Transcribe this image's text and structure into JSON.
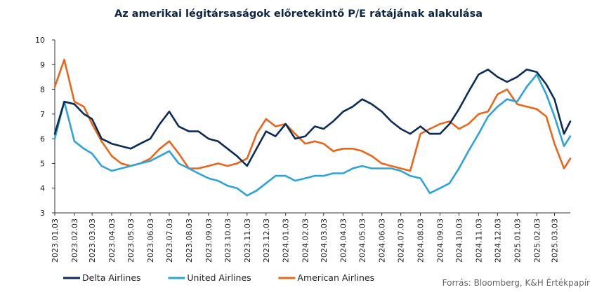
{
  "chart_data": {
    "type": "line",
    "title": "Az amerikai légitársaságok előretekintő P/E rátájának alakulása",
    "xlabel": "",
    "ylabel": "",
    "ylim": [
      3,
      10
    ],
    "yticks": [
      3,
      4,
      5,
      6,
      7,
      8,
      9,
      10
    ],
    "grid": false,
    "legend_position": "bottom-left",
    "source": "Forrás: Bloomberg, K&H Értékpapír",
    "x_tick_labels": [
      "2023.01.03",
      "2023.02.03",
      "2023.03.03",
      "2023.04.03",
      "2023.05.03",
      "2023.06.03",
      "2023.07.03",
      "2023.08.03",
      "2023.09.03",
      "2023.10.03",
      "2023.11.03",
      "2023.12.03",
      "2024.01.03",
      "2024.02.03",
      "2024.03.03",
      "2024.04.03",
      "2024.05.03",
      "2024.06.03",
      "2024.07.03",
      "2024.08.03",
      "2024.09.03",
      "2024.10.03",
      "2024.11.03",
      "2024.12.03",
      "2025.01.03",
      "2025.02.03",
      "2025.03.03"
    ],
    "x": [
      "2023.01.03",
      "2023.01.18",
      "2023.02.03",
      "2023.02.18",
      "2023.03.03",
      "2023.03.18",
      "2023.04.03",
      "2023.04.18",
      "2023.05.03",
      "2023.05.18",
      "2023.06.03",
      "2023.06.18",
      "2023.07.03",
      "2023.07.18",
      "2023.08.03",
      "2023.08.18",
      "2023.09.03",
      "2023.09.18",
      "2023.10.03",
      "2023.10.18",
      "2023.11.03",
      "2023.11.18",
      "2023.12.03",
      "2023.12.18",
      "2024.01.03",
      "2024.01.18",
      "2024.02.03",
      "2024.02.18",
      "2024.03.03",
      "2024.03.18",
      "2024.04.03",
      "2024.04.18",
      "2024.05.03",
      "2024.05.18",
      "2024.06.03",
      "2024.06.18",
      "2024.07.03",
      "2024.07.18",
      "2024.08.03",
      "2024.08.18",
      "2024.09.03",
      "2024.09.18",
      "2024.10.03",
      "2024.10.18",
      "2024.11.03",
      "2024.11.18",
      "2024.12.03",
      "2024.12.18",
      "2025.01.03",
      "2025.01.18",
      "2025.02.03",
      "2025.02.18",
      "2025.03.03",
      "2025.03.18",
      "2025.03.28"
    ],
    "series": [
      {
        "name": "Delta Airlines",
        "color": "#0b2c56",
        "values": [
          6.2,
          7.5,
          7.4,
          7.0,
          6.8,
          6.0,
          5.8,
          5.7,
          5.6,
          5.8,
          6.0,
          6.6,
          7.1,
          6.5,
          6.3,
          6.3,
          6.0,
          5.9,
          5.6,
          5.3,
          4.9,
          5.6,
          6.3,
          6.1,
          6.6,
          6.0,
          6.1,
          6.5,
          6.4,
          6.7,
          7.1,
          7.3,
          7.6,
          7.4,
          7.1,
          6.7,
          6.4,
          6.2,
          6.5,
          6.2,
          6.2,
          6.6,
          7.2,
          7.9,
          8.6,
          8.8,
          8.5,
          8.3,
          8.5,
          8.8,
          8.7,
          8.2,
          7.6,
          6.2,
          6.7
        ]
      },
      {
        "name": "United Airlines",
        "color": "#2ea3d8",
        "values": [
          6.0,
          7.5,
          5.9,
          5.6,
          5.4,
          4.9,
          4.7,
          4.8,
          4.9,
          5.0,
          5.1,
          5.3,
          5.5,
          5.0,
          4.8,
          4.6,
          4.4,
          4.3,
          4.1,
          4.0,
          3.7,
          3.9,
          4.2,
          4.5,
          4.5,
          4.3,
          4.4,
          4.5,
          4.5,
          4.6,
          4.6,
          4.8,
          4.9,
          4.8,
          4.8,
          4.8,
          4.7,
          4.5,
          4.4,
          3.8,
          4.0,
          4.2,
          4.8,
          5.5,
          6.2,
          6.9,
          7.3,
          7.6,
          7.5,
          8.1,
          8.6,
          7.8,
          6.9,
          5.7,
          6.1
        ]
      },
      {
        "name": "American Airlines",
        "color": "#e8661c",
        "values": [
          8.1,
          9.2,
          7.5,
          7.3,
          6.6,
          5.9,
          5.3,
          5.0,
          4.9,
          5.0,
          5.2,
          5.6,
          5.9,
          5.4,
          4.8,
          4.8,
          4.9,
          5.0,
          4.9,
          5.0,
          5.2,
          6.2,
          6.8,
          6.5,
          6.6,
          6.2,
          5.8,
          5.9,
          5.8,
          5.5,
          5.6,
          5.6,
          5.5,
          5.3,
          5.0,
          4.9,
          4.8,
          4.7,
          6.2,
          6.4,
          6.6,
          6.7,
          6.4,
          6.6,
          7.0,
          7.1,
          7.8,
          8.0,
          7.4,
          7.3,
          7.2,
          6.9,
          5.8,
          4.8,
          5.2
        ]
      }
    ]
  }
}
